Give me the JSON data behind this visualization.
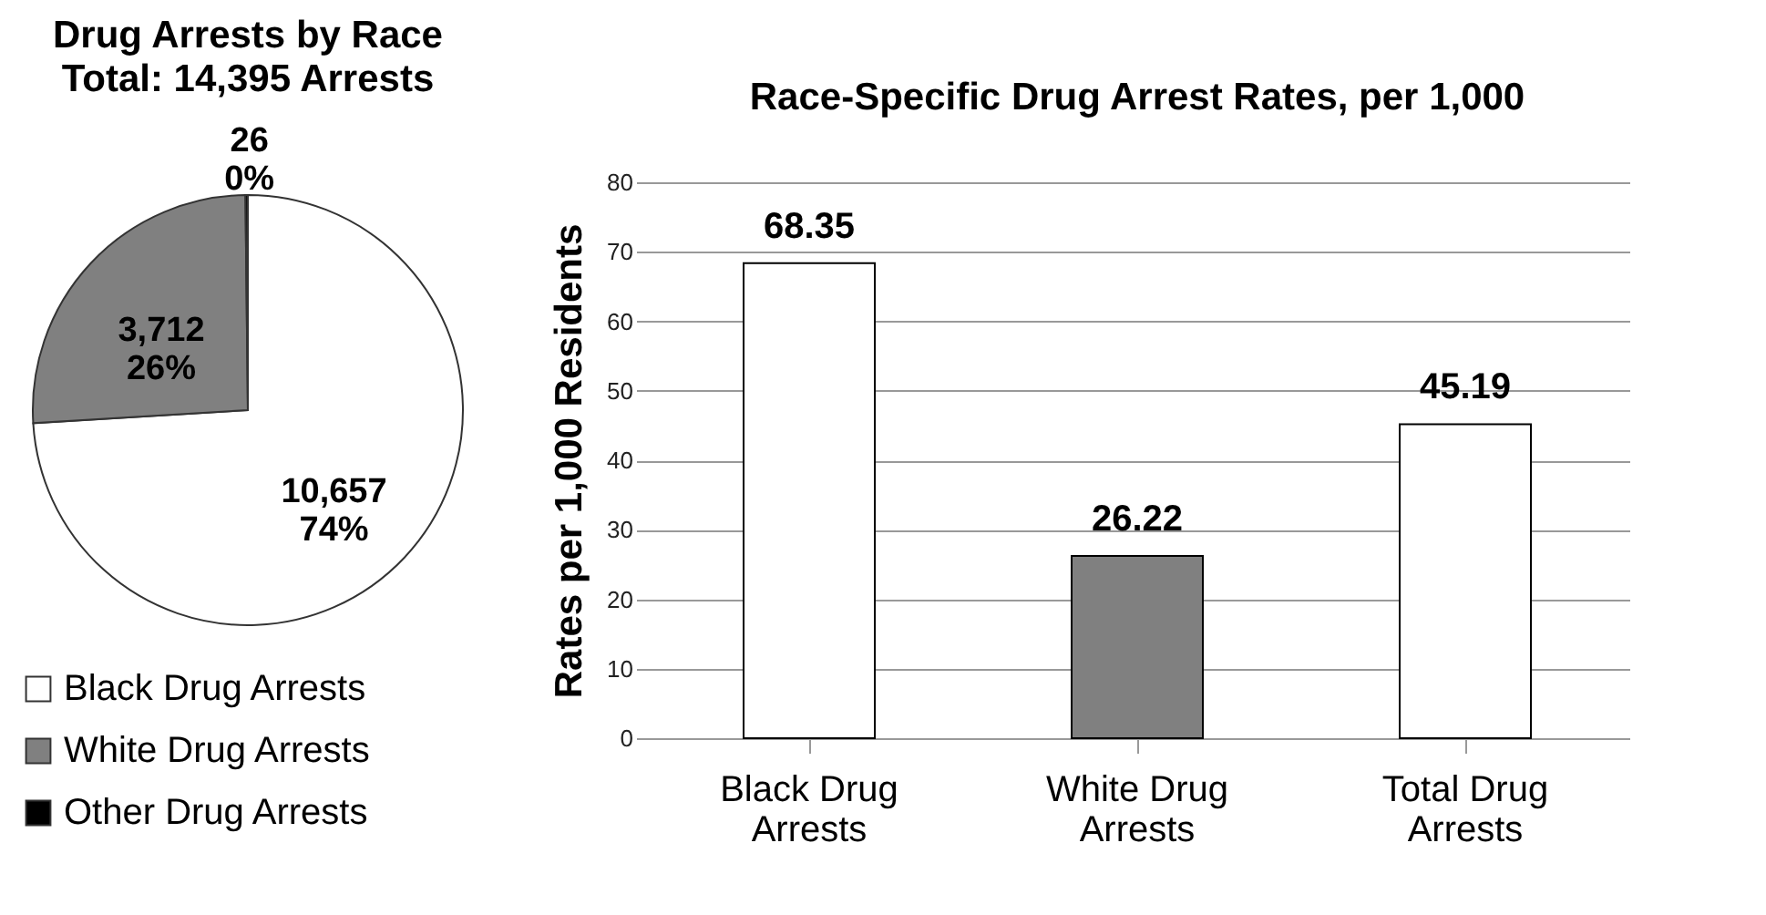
{
  "chart_data": [
    {
      "type": "pie",
      "title": "Drug Arrests by Race",
      "subtitle": "Total: 14,395 Arrests",
      "categories": [
        "Black Drug Arrests",
        "White Drug Arrests",
        "Other Drug Arrests"
      ],
      "values": [
        10657,
        3712,
        26
      ],
      "colors": [
        "#ffffff",
        "#808080",
        "#000000"
      ],
      "value_labels": [
        "10,657\n74%",
        "3,712\n26%",
        "26\n0%"
      ],
      "legend": "bottom"
    },
    {
      "type": "bar",
      "title": "Race-Specific Drug Arrest Rates, per 1,000",
      "ylabel": "Rates per 1,000 Residents",
      "categories": [
        "Black Drug Arrests",
        "White Drug Arrests",
        "Total Drug Arrests"
      ],
      "values": [
        68.35,
        26.22,
        45.19
      ],
      "colors": [
        "#ffffff",
        "#808080",
        "#ffffff"
      ],
      "ylim": [
        0,
        80
      ],
      "yticks": [
        0,
        10,
        20,
        30,
        40,
        50,
        60,
        70,
        80
      ],
      "grid": "y",
      "data_labels": true
    }
  ]
}
